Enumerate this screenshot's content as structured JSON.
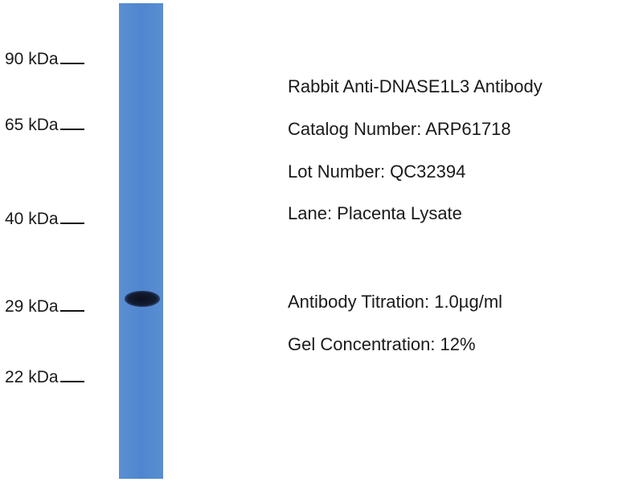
{
  "markers": [
    "90 kDa",
    "65 kDa",
    "40 kDa",
    "29 kDa",
    "22 kDa"
  ],
  "info": {
    "antibody": "Rabbit Anti-DNASE1L3 Antibody",
    "catalog": "Catalog Number: ARP61718",
    "lot": "Lot Number: QC32394",
    "lane": "Lane: Placenta Lysate",
    "titration": "Antibody Titration: 1.0µg/ml",
    "gel": "Gel Concentration: 12%"
  },
  "colors": {
    "lane": "#4f86cf",
    "band": "#0b1020"
  }
}
